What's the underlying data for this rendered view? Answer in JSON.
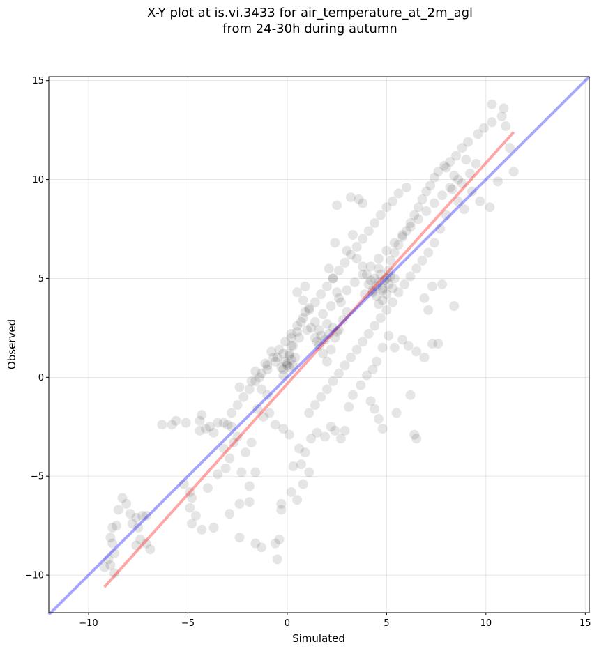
{
  "chart_data": {
    "type": "scatter",
    "title_line1": "X-Y plot at is.vi.3433 for air_temperature_at_2m_agl",
    "title_line2": "from 24-30h during autumn",
    "xlabel": "Simulated",
    "ylabel": "Observed",
    "xlim": [
      -12,
      15.2
    ],
    "ylim": [
      -11.9,
      15.2
    ],
    "xticks": [
      -10,
      -5,
      0,
      5,
      10,
      15
    ],
    "yticks": [
      -10,
      -5,
      0,
      5,
      10,
      15
    ],
    "xtick_labels": [
      "−10",
      "−5",
      "0",
      "5",
      "10",
      "15"
    ],
    "ytick_labels": [
      "−10",
      "−5",
      "0",
      "5",
      "10",
      "15"
    ],
    "grid": true,
    "point_color": "#000000",
    "point_opacity": 0.1,
    "points": [
      [
        -8.3,
        -6.1
      ],
      [
        -8.5,
        -6.7
      ],
      [
        -8.1,
        -6.4
      ],
      [
        -7.9,
        -6.9
      ],
      [
        -7.6,
        -7.1
      ],
      [
        -7.3,
        -7.0
      ],
      [
        -7.1,
        -7.0
      ],
      [
        -7.8,
        -7.4
      ],
      [
        -7.5,
        -7.6
      ],
      [
        -8.6,
        -7.5
      ],
      [
        -8.8,
        -7.6
      ],
      [
        -8.9,
        -8.1
      ],
      [
        -8.8,
        -8.4
      ],
      [
        -8.7,
        -8.9
      ],
      [
        -9.0,
        -9.2
      ],
      [
        -8.9,
        -9.5
      ],
      [
        -9.2,
        -9.6
      ],
      [
        -8.7,
        -9.9
      ],
      [
        -7.4,
        -8.2
      ],
      [
        -7.1,
        -8.4
      ],
      [
        -6.9,
        -8.7
      ],
      [
        -7.6,
        -8.5
      ],
      [
        -6.3,
        -2.4
      ],
      [
        -5.8,
        -2.4
      ],
      [
        -5.6,
        -2.2
      ],
      [
        -5.1,
        -2.3
      ],
      [
        -4.4,
        -2.2
      ],
      [
        -4.3,
        -1.9
      ],
      [
        -4.1,
        -2.6
      ],
      [
        -3.9,
        -2.5
      ],
      [
        -3.7,
        -2.8
      ],
      [
        -3.5,
        -2.3
      ],
      [
        -3.2,
        -2.3
      ],
      [
        -3.0,
        -2.4
      ],
      [
        -2.8,
        -2.5
      ],
      [
        -4.4,
        -2.7
      ],
      [
        -5.2,
        -5.4
      ],
      [
        -4.9,
        -5.8
      ],
      [
        -4.8,
        -6.1
      ],
      [
        -4.9,
        -6.6
      ],
      [
        -4.6,
        -7.0
      ],
      [
        -4.8,
        -7.4
      ],
      [
        -4.3,
        -7.7
      ],
      [
        -3.7,
        -7.6
      ],
      [
        -4.0,
        -5.6
      ],
      [
        -3.5,
        -4.9
      ],
      [
        -3.1,
        -4.6
      ],
      [
        -2.9,
        -4.1
      ],
      [
        -3.2,
        -3.6
      ],
      [
        -2.7,
        -3.3
      ],
      [
        -2.5,
        -3.0
      ],
      [
        -2.1,
        -3.8
      ],
      [
        -1.8,
        -3.3
      ],
      [
        -2.3,
        -4.8
      ],
      [
        -1.9,
        -5.5
      ],
      [
        -1.6,
        -4.8
      ],
      [
        -2.4,
        -6.4
      ],
      [
        -1.9,
        -6.3
      ],
      [
        -2.9,
        -6.9
      ],
      [
        -2.4,
        -8.1
      ],
      [
        -1.6,
        -8.4
      ],
      [
        -1.3,
        -8.6
      ],
      [
        -0.4,
        -8.2
      ],
      [
        -0.6,
        -8.4
      ],
      [
        -0.5,
        -9.2
      ],
      [
        -0.3,
        -6.7
      ],
      [
        -0.3,
        -6.4
      ],
      [
        0.2,
        -5.8
      ],
      [
        0.5,
        -6.2
      ],
      [
        0.8,
        -5.4
      ],
      [
        0.3,
        -4.5
      ],
      [
        0.7,
        -4.4
      ],
      [
        1.1,
        -4.8
      ],
      [
        0.6,
        -3.6
      ],
      [
        0.9,
        -3.8
      ],
      [
        1.2,
        -3.1
      ],
      [
        1.5,
        -2.8
      ],
      [
        1.9,
        -3.0
      ],
      [
        2.2,
        -2.5
      ],
      [
        2.4,
        -2.7
      ],
      [
        2.7,
        -3.1
      ],
      [
        2.9,
        -2.7
      ],
      [
        3.1,
        -1.5
      ],
      [
        3.3,
        -0.9
      ],
      [
        4.2,
        -1.2
      ],
      [
        4.4,
        -1.6
      ],
      [
        4.6,
        -2.1
      ],
      [
        4.8,
        -2.6
      ],
      [
        5.5,
        -1.8
      ],
      [
        6.2,
        -0.9
      ],
      [
        6.4,
        -2.9
      ],
      [
        6.5,
        -3.1
      ],
      [
        -1.5,
        -1.6
      ],
      [
        -1.2,
        -2.0
      ],
      [
        -0.9,
        -1.8
      ],
      [
        -0.6,
        -2.4
      ],
      [
        -0.2,
        -2.6
      ],
      [
        0.1,
        -2.9
      ],
      [
        -1.0,
        -0.9
      ],
      [
        -1.3,
        -0.6
      ],
      [
        -1.8,
        -0.2
      ],
      [
        -2.4,
        -0.5
      ],
      [
        -1.6,
        0.3
      ],
      [
        -1.1,
        0.7
      ],
      [
        -0.8,
        1.3
      ],
      [
        -0.5,
        1.0
      ],
      [
        -0.3,
        0.5
      ],
      [
        -0.2,
        0.1
      ],
      [
        0.0,
        0.6
      ],
      [
        0.1,
        1.2
      ],
      [
        0.3,
        1.6
      ],
      [
        0.2,
        2.0
      ],
      [
        0.5,
        2.3
      ],
      [
        0.7,
        2.8
      ],
      [
        0.9,
        3.3
      ],
      [
        1.1,
        3.5
      ],
      [
        0.8,
        3.9
      ],
      [
        0.5,
        4.3
      ],
      [
        0.9,
        4.6
      ],
      [
        1.2,
        2.5
      ],
      [
        1.4,
        2.0
      ],
      [
        1.6,
        1.6
      ],
      [
        1.8,
        1.2
      ],
      [
        2.0,
        0.8
      ],
      [
        2.2,
        1.4
      ],
      [
        2.4,
        2.0
      ],
      [
        2.6,
        2.4
      ],
      [
        2.8,
        2.9
      ],
      [
        3.0,
        3.3
      ],
      [
        2.7,
        3.8
      ],
      [
        2.5,
        4.3
      ],
      [
        2.3,
        5.0
      ],
      [
        2.1,
        5.5
      ],
      [
        2.4,
        6.8
      ],
      [
        2.5,
        8.7
      ],
      [
        3.2,
        9.1
      ],
      [
        3.6,
        9.0
      ],
      [
        3.8,
        8.8
      ],
      [
        3.3,
        7.2
      ],
      [
        3.0,
        6.4
      ],
      [
        3.5,
        6.0
      ],
      [
        3.8,
        5.6
      ],
      [
        4.0,
        5.2
      ],
      [
        4.2,
        4.9
      ],
      [
        4.3,
        4.4
      ],
      [
        4.5,
        4.1
      ],
      [
        4.6,
        3.7
      ],
      [
        4.8,
        4.5
      ],
      [
        5.0,
        5.0
      ],
      [
        5.1,
        5.4
      ],
      [
        5.2,
        5.9
      ],
      [
        5.4,
        6.3
      ],
      [
        5.6,
        6.7
      ],
      [
        5.8,
        7.1
      ],
      [
        6.0,
        7.4
      ],
      [
        6.2,
        7.8
      ],
      [
        6.4,
        8.2
      ],
      [
        6.6,
        8.6
      ],
      [
        6.8,
        9.0
      ],
      [
        7.0,
        9.4
      ],
      [
        7.2,
        9.7
      ],
      [
        7.4,
        10.1
      ],
      [
        7.6,
        10.4
      ],
      [
        7.9,
        10.7
      ],
      [
        8.2,
        10.9
      ],
      [
        8.5,
        11.2
      ],
      [
        8.8,
        11.6
      ],
      [
        9.1,
        11.9
      ],
      [
        9.6,
        12.3
      ],
      [
        9.9,
        12.6
      ],
      [
        10.3,
        12.9
      ],
      [
        10.8,
        13.2
      ],
      [
        10.9,
        13.6
      ],
      [
        10.3,
        13.8
      ],
      [
        11.0,
        12.7
      ],
      [
        11.2,
        11.6
      ],
      [
        11.4,
        10.4
      ],
      [
        10.6,
        9.9
      ],
      [
        10.2,
        8.6
      ],
      [
        9.7,
        8.9
      ],
      [
        9.3,
        9.4
      ],
      [
        8.9,
        8.5
      ],
      [
        8.6,
        8.9
      ],
      [
        8.3,
        9.5
      ],
      [
        8.0,
        8.2
      ],
      [
        7.7,
        7.5
      ],
      [
        7.4,
        6.8
      ],
      [
        7.1,
        6.3
      ],
      [
        6.8,
        5.9
      ],
      [
        6.5,
        5.5
      ],
      [
        6.2,
        5.1
      ],
      [
        5.9,
        4.7
      ],
      [
        5.6,
        4.3
      ],
      [
        5.3,
        3.8
      ],
      [
        5.0,
        3.4
      ],
      [
        4.7,
        3.0
      ],
      [
        4.4,
        2.6
      ],
      [
        4.1,
        2.2
      ],
      [
        3.8,
        1.8
      ],
      [
        3.5,
        1.4
      ],
      [
        3.2,
        1.0
      ],
      [
        2.9,
        0.6
      ],
      [
        2.6,
        0.2
      ],
      [
        2.3,
        -0.2
      ],
      [
        2.0,
        -0.6
      ],
      [
        1.7,
        -1.0
      ],
      [
        1.4,
        -1.4
      ],
      [
        1.1,
        -1.8
      ],
      [
        5.8,
        1.9
      ],
      [
        6.1,
        1.6
      ],
      [
        6.5,
        1.3
      ],
      [
        6.9,
        1.0
      ],
      [
        7.3,
        1.7
      ],
      [
        7.6,
        1.7
      ],
      [
        7.1,
        3.4
      ],
      [
        6.9,
        4.0
      ],
      [
        7.3,
        4.6
      ],
      [
        7.8,
        4.7
      ],
      [
        8.4,
        3.6
      ],
      [
        5.4,
        1.5
      ],
      [
        5.1,
        2.1
      ],
      [
        4.8,
        1.5
      ],
      [
        4.5,
        0.8
      ],
      [
        4.3,
        0.4
      ],
      [
        4.0,
        0.1
      ],
      [
        3.7,
        -0.4
      ],
      [
        6.0,
        9.6
      ],
      [
        5.6,
        9.3
      ],
      [
        5.3,
        8.9
      ],
      [
        5.0,
        8.6
      ],
      [
        4.7,
        8.2
      ],
      [
        4.4,
        7.8
      ],
      [
        4.1,
        7.4
      ],
      [
        3.8,
        7.0
      ],
      [
        3.5,
        6.6
      ],
      [
        3.2,
        6.2
      ],
      [
        2.9,
        5.8
      ],
      [
        2.6,
        5.4
      ],
      [
        2.3,
        5.0
      ],
      [
        2.0,
        4.6
      ],
      [
        1.7,
        4.2
      ],
      [
        1.4,
        3.8
      ],
      [
        1.1,
        3.4
      ],
      [
        0.8,
        3.0
      ],
      [
        0.5,
        2.6
      ],
      [
        0.2,
        2.2
      ],
      [
        -0.1,
        1.8
      ],
      [
        -0.4,
        1.4
      ],
      [
        -0.7,
        1.0
      ],
      [
        -1.0,
        0.6
      ],
      [
        -1.3,
        0.2
      ],
      [
        -1.6,
        -0.2
      ],
      [
        -1.9,
        -0.6
      ],
      [
        -2.2,
        -1.0
      ],
      [
        -2.5,
        -1.4
      ],
      [
        -2.8,
        -1.8
      ],
      [
        8.0,
        10.6
      ],
      [
        8.4,
        10.2
      ],
      [
        8.8,
        9.8
      ],
      [
        9.2,
        10.3
      ],
      [
        9.5,
        10.8
      ],
      [
        9.0,
        11.0
      ],
      [
        8.6,
        10.0
      ],
      [
        8.2,
        9.6
      ],
      [
        7.8,
        9.2
      ],
      [
        7.4,
        8.8
      ],
      [
        7.0,
        8.4
      ],
      [
        6.6,
        8.0
      ],
      [
        6.2,
        7.6
      ],
      [
        5.8,
        7.2
      ],
      [
        5.4,
        6.8
      ],
      [
        5.0,
        6.4
      ],
      [
        4.6,
        6.0
      ],
      [
        4.2,
        5.6
      ],
      [
        3.8,
        5.2
      ],
      [
        3.4,
        4.8
      ],
      [
        3.0,
        4.4
      ],
      [
        2.6,
        4.0
      ],
      [
        2.2,
        3.6
      ],
      [
        1.8,
        3.2
      ],
      [
        1.4,
        2.8
      ],
      [
        1.0,
        2.4
      ],
      [
        0.6,
        2.0
      ],
      [
        0.2,
        1.6
      ],
      [
        -0.2,
        1.2
      ],
      [
        -0.6,
        0.8
      ],
      [
        -1.0,
        0.4
      ],
      [
        -1.4,
        0.0
      ],
      [
        4.5,
        4.6
      ],
      [
        4.6,
        4.8
      ],
      [
        4.8,
        4.4
      ],
      [
        4.9,
        4.9
      ],
      [
        5.1,
        4.7
      ],
      [
        5.2,
        5.1
      ],
      [
        4.4,
        5.0
      ],
      [
        4.3,
        4.3
      ],
      [
        4.7,
        5.2
      ],
      [
        5.0,
        4.2
      ],
      [
        5.3,
        4.5
      ],
      [
        4.1,
        4.7
      ],
      [
        4.6,
        5.5
      ],
      [
        5.4,
        5.0
      ],
      [
        3.9,
        4.2
      ],
      [
        4.8,
        3.9
      ],
      [
        0.0,
        0.7
      ],
      [
        0.1,
        0.5
      ],
      [
        -0.1,
        0.8
      ],
      [
        0.2,
        0.9
      ],
      [
        0.3,
        0.6
      ],
      [
        -0.2,
        0.4
      ],
      [
        0.4,
        1.0
      ],
      [
        0.1,
        1.1
      ],
      [
        1.5,
        1.8
      ],
      [
        1.7,
        2.1
      ],
      [
        1.9,
        1.9
      ],
      [
        2.1,
        2.2
      ],
      [
        2.3,
        2.5
      ],
      [
        2.5,
        2.3
      ],
      [
        2.0,
        2.7
      ],
      [
        1.6,
        2.4
      ]
    ],
    "fit_line": {
      "x": [
        -9.2,
        11.4
      ],
      "y": [
        -10.6,
        12.4
      ],
      "color": "#ff0000",
      "opacity": 0.35
    },
    "identity_line": {
      "x": [
        -12,
        15.2
      ],
      "y": [
        -12,
        15.2
      ],
      "color": "#0000ff",
      "opacity": 0.35
    }
  }
}
